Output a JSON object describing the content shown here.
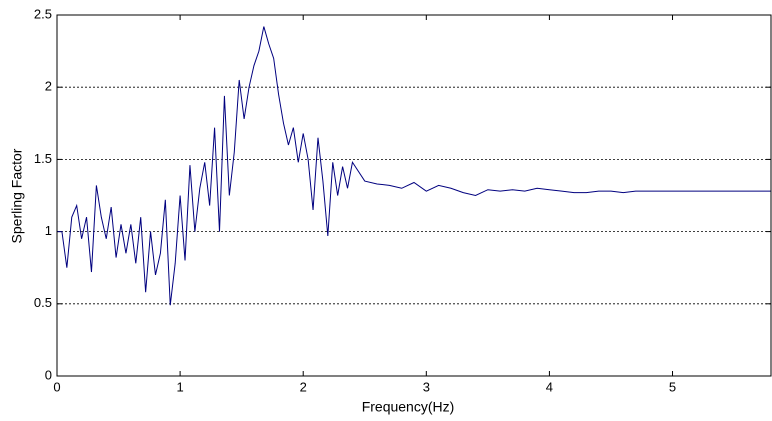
{
  "chart_data": {
    "type": "line",
    "xlabel": "Frequency(Hz)",
    "ylabel": "Sperling Factor",
    "x": [
      0,
      0.04,
      0.08,
      0.12,
      0.16,
      0.2,
      0.24,
      0.28,
      0.32,
      0.36,
      0.4,
      0.44,
      0.48,
      0.52,
      0.56,
      0.6,
      0.64,
      0.68,
      0.72,
      0.76,
      0.8,
      0.84,
      0.88,
      0.92,
      0.96,
      1.0,
      1.04,
      1.08,
      1.12,
      1.16,
      1.2,
      1.24,
      1.28,
      1.32,
      1.36,
      1.4,
      1.44,
      1.48,
      1.52,
      1.56,
      1.6,
      1.64,
      1.68,
      1.72,
      1.76,
      1.8,
      1.84,
      1.88,
      1.92,
      1.96,
      2.0,
      2.04,
      2.08,
      2.12,
      2.16,
      2.2,
      2.24,
      2.28,
      2.32,
      2.36,
      2.4,
      2.5,
      2.6,
      2.7,
      2.8,
      2.9,
      3.0,
      3.1,
      3.2,
      3.3,
      3.4,
      3.5,
      3.6,
      3.7,
      3.8,
      3.9,
      4.0,
      4.1,
      4.2,
      4.3,
      4.4,
      4.5,
      4.6,
      4.7,
      4.8,
      4.9,
      5.0,
      5.1,
      5.2,
      5.3,
      5.4,
      5.5,
      5.6,
      5.7,
      5.8
    ],
    "series": [
      {
        "color": "#00007f",
        "values": [
          1.0,
          1.0,
          0.75,
          1.1,
          1.18,
          0.95,
          1.1,
          0.72,
          1.32,
          1.1,
          0.95,
          1.17,
          0.82,
          1.05,
          0.85,
          1.05,
          0.78,
          1.1,
          0.58,
          1.0,
          0.7,
          0.85,
          1.22,
          0.49,
          0.78,
          1.25,
          0.8,
          1.46,
          1.0,
          1.3,
          1.48,
          1.18,
          1.72,
          1.0,
          1.94,
          1.25,
          1.55,
          2.05,
          1.78,
          2.0,
          2.15,
          2.25,
          2.42,
          2.3,
          2.2,
          1.95,
          1.75,
          1.6,
          1.72,
          1.48,
          1.68,
          1.5,
          1.15,
          1.65,
          1.35,
          0.97,
          1.48,
          1.25,
          1.45,
          1.3,
          1.48,
          1.35,
          1.33,
          1.32,
          1.3,
          1.34,
          1.28,
          1.32,
          1.3,
          1.27,
          1.25,
          1.29,
          1.28,
          1.29,
          1.28,
          1.3,
          1.29,
          1.28,
          1.27,
          1.27,
          1.28,
          1.28,
          1.27,
          1.28,
          1.28,
          1.28,
          1.28,
          1.28,
          1.28,
          1.28,
          1.28,
          1.28,
          1.28,
          1.28,
          1.28
        ]
      }
    ],
    "xlim": [
      0,
      5.8
    ],
    "xticks": [
      0,
      1,
      2,
      3,
      4,
      5
    ],
    "ylim": [
      0,
      2.5
    ],
    "yticks": [
      0,
      0.5,
      1,
      1.5,
      2,
      2.5
    ],
    "grid": true
  }
}
